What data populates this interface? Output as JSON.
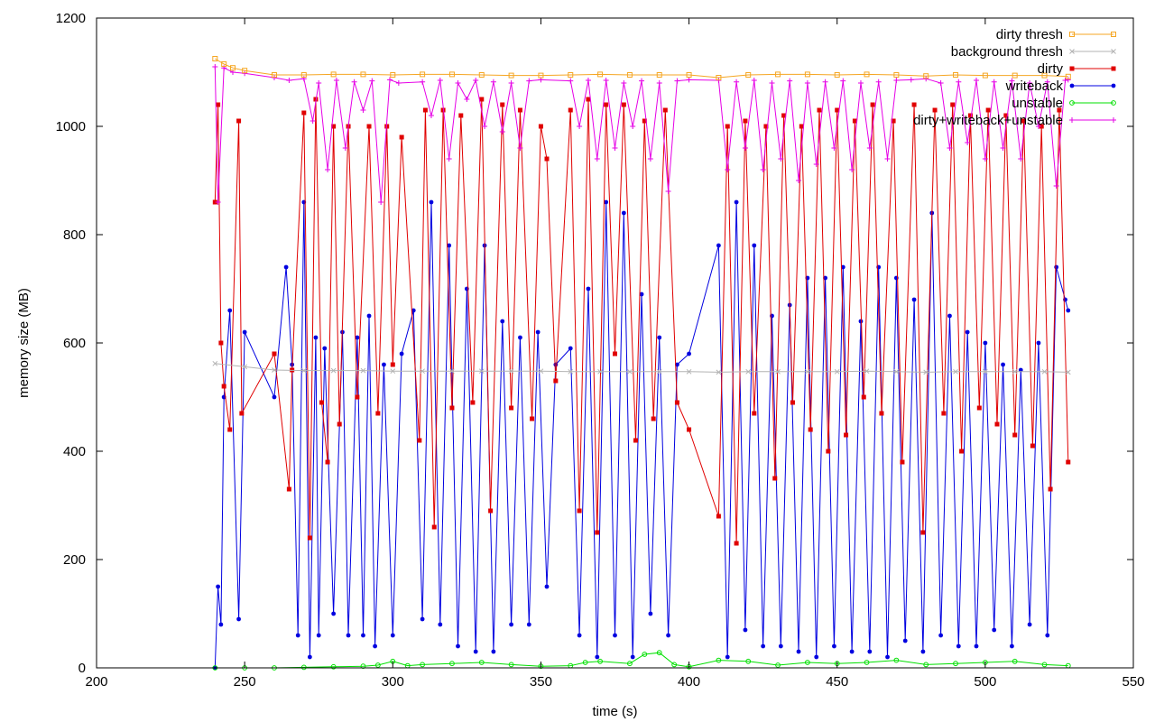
{
  "chart_data": {
    "type": "line",
    "xlabel": "time (s)",
    "ylabel": "memory size (MB)",
    "xlim": [
      200,
      550
    ],
    "ylim": [
      0,
      1200
    ],
    "xticks": [
      "200",
      "250",
      "300",
      "350",
      "400",
      "450",
      "500",
      "550"
    ],
    "yticks": [
      "0",
      "200",
      "400",
      "600",
      "800",
      "1000",
      "1200"
    ],
    "legend_position": "top-right",
    "series": [
      {
        "name": "dirty thresh",
        "color": "#f5a623",
        "marker": "square-open",
        "x": [
          240,
          243,
          246,
          250,
          260,
          270,
          280,
          290,
          300,
          310,
          320,
          330,
          340,
          350,
          360,
          370,
          380,
          390,
          400,
          410,
          420,
          430,
          440,
          450,
          460,
          470,
          480,
          490,
          500,
          510,
          520,
          528
        ],
        "y": [
          1125,
          1115,
          1108,
          1103,
          1095,
          1095,
          1096,
          1096,
          1095,
          1096,
          1096,
          1095,
          1094,
          1094,
          1095,
          1096,
          1095,
          1095,
          1095,
          1090,
          1095,
          1096,
          1096,
          1095,
          1096,
          1095,
          1093,
          1095,
          1094,
          1094,
          1094,
          1092
        ]
      },
      {
        "name": "background thresh",
        "color": "#b3b3b3",
        "marker": "cross",
        "x": [
          240,
          250,
          260,
          270,
          280,
          290,
          300,
          310,
          320,
          330,
          340,
          350,
          360,
          370,
          380,
          390,
          400,
          410,
          420,
          430,
          440,
          450,
          460,
          470,
          480,
          490,
          500,
          510,
          520,
          528
        ],
        "y": [
          562,
          556,
          550,
          549,
          549,
          549,
          548,
          548,
          548,
          548,
          548,
          548,
          547,
          547,
          547,
          547,
          547,
          546,
          547,
          547,
          547,
          547,
          548,
          547,
          546,
          547,
          547,
          547,
          547,
          546
        ]
      },
      {
        "name": "dirty",
        "color": "#e00000",
        "marker": "square",
        "x": [
          240,
          241,
          242,
          243,
          245,
          248,
          249,
          260,
          265,
          266,
          270,
          272,
          274,
          276,
          278,
          280,
          282,
          285,
          288,
          292,
          295,
          298,
          300,
          303,
          309,
          311,
          314,
          317,
          320,
          323,
          327,
          330,
          333,
          337,
          340,
          343,
          347,
          350,
          352,
          355,
          360,
          363,
          366,
          369,
          372,
          375,
          378,
          382,
          385,
          388,
          392,
          396,
          400,
          410,
          413,
          416,
          419,
          422,
          426,
          429,
          432,
          435,
          438,
          441,
          444,
          447,
          450,
          453,
          456,
          459,
          462,
          465,
          469,
          472,
          476,
          479,
          483,
          486,
          489,
          492,
          495,
          498,
          501,
          504,
          507,
          510,
          513,
          516,
          519,
          522,
          525,
          528
        ],
        "y": [
          860,
          1040,
          600,
          520,
          440,
          1010,
          470,
          580,
          330,
          550,
          1025,
          240,
          1050,
          490,
          380,
          1000,
          450,
          1000,
          500,
          1000,
          470,
          1000,
          560,
          980,
          420,
          1030,
          260,
          1030,
          480,
          1020,
          490,
          1050,
          290,
          1040,
          480,
          1030,
          460,
          1000,
          940,
          530,
          1030,
          290,
          1050,
          250,
          1040,
          580,
          1040,
          420,
          1010,
          460,
          1030,
          490,
          440,
          280,
          1000,
          230,
          1010,
          470,
          1000,
          350,
          1020,
          490,
          1000,
          440,
          1030,
          400,
          1030,
          430,
          1010,
          500,
          1040,
          470,
          1010,
          380,
          1040,
          250,
          1030,
          470,
          1040,
          400,
          1020,
          480,
          1030,
          450,
          1020,
          430,
          1010,
          410,
          1000,
          330,
          1030,
          380
        ]
      },
      {
        "name": "writeback",
        "color": "#0000e0",
        "marker": "circle",
        "x": [
          240,
          241,
          242,
          243,
          245,
          248,
          250,
          260,
          264,
          266,
          268,
          270,
          272,
          274,
          275,
          277,
          280,
          283,
          285,
          288,
          290,
          292,
          294,
          297,
          300,
          303,
          307,
          310,
          313,
          316,
          319,
          322,
          325,
          328,
          331,
          334,
          337,
          340,
          343,
          346,
          349,
          352,
          355,
          360,
          363,
          366,
          369,
          372,
          375,
          378,
          381,
          384,
          387,
          390,
          393,
          396,
          400,
          410,
          413,
          416,
          419,
          422,
          425,
          428,
          431,
          434,
          437,
          440,
          443,
          446,
          449,
          452,
          455,
          458,
          461,
          464,
          467,
          470,
          473,
          476,
          479,
          482,
          485,
          488,
          491,
          494,
          497,
          500,
          503,
          506,
          509,
          512,
          515,
          518,
          521,
          524,
          527,
          528
        ],
        "y": [
          0,
          150,
          80,
          500,
          660,
          90,
          620,
          500,
          740,
          560,
          60,
          860,
          20,
          610,
          60,
          590,
          100,
          620,
          60,
          610,
          60,
          650,
          40,
          560,
          60,
          580,
          660,
          90,
          860,
          80,
          780,
          40,
          700,
          30,
          780,
          30,
          640,
          80,
          610,
          80,
          620,
          150,
          560,
          590,
          60,
          700,
          20,
          860,
          60,
          840,
          20,
          690,
          100,
          610,
          60,
          560,
          580,
          780,
          20,
          860,
          70,
          780,
          40,
          650,
          40,
          670,
          30,
          720,
          20,
          720,
          40,
          740,
          30,
          640,
          30,
          740,
          20,
          720,
          50,
          680,
          30,
          840,
          60,
          650,
          40,
          620,
          40,
          600,
          70,
          560,
          40,
          550,
          80,
          600,
          60,
          740,
          680,
          660
        ]
      },
      {
        "name": "unstable",
        "color": "#00e000",
        "marker": "circle-open",
        "x": [
          240,
          250,
          260,
          270,
          280,
          290,
          295,
          300,
          305,
          310,
          320,
          330,
          340,
          350,
          360,
          365,
          370,
          380,
          385,
          390,
          395,
          400,
          410,
          420,
          430,
          440,
          450,
          460,
          470,
          480,
          490,
          500,
          510,
          520,
          528
        ],
        "y": [
          0,
          0,
          0,
          1,
          2,
          3,
          5,
          12,
          4,
          6,
          8,
          10,
          6,
          3,
          4,
          10,
          12,
          8,
          25,
          28,
          6,
          2,
          14,
          12,
          5,
          10,
          8,
          10,
          14,
          6,
          8,
          10,
          12,
          6,
          4
        ]
      },
      {
        "name": "dirty+writeback+unstable",
        "color": "#e600e6",
        "marker": "plus",
        "x": [
          240,
          241,
          243,
          246,
          250,
          260,
          265,
          270,
          273,
          275,
          278,
          281,
          284,
          287,
          290,
          293,
          296,
          299,
          302,
          310,
          313,
          316,
          319,
          322,
          325,
          328,
          331,
          334,
          337,
          340,
          343,
          346,
          350,
          360,
          363,
          366,
          369,
          372,
          375,
          378,
          381,
          384,
          387,
          390,
          393,
          396,
          400,
          410,
          413,
          416,
          419,
          422,
          425,
          428,
          431,
          434,
          437,
          440,
          443,
          446,
          449,
          452,
          455,
          458,
          461,
          464,
          467,
          470,
          475,
          480,
          485,
          488,
          491,
          494,
          497,
          500,
          503,
          506,
          509,
          512,
          515,
          518,
          521,
          524,
          527,
          528
        ],
        "y": [
          1110,
          860,
          1108,
          1100,
          1098,
          1090,
          1085,
          1088,
          1010,
          1080,
          920,
          1085,
          960,
          1082,
          1030,
          1084,
          860,
          1086,
          1080,
          1082,
          1020,
          1085,
          940,
          1080,
          1050,
          1085,
          1000,
          1082,
          990,
          1080,
          960,
          1084,
          1086,
          1084,
          1000,
          1085,
          940,
          1085,
          960,
          1080,
          1000,
          1084,
          940,
          1080,
          880,
          1084,
          1086,
          1085,
          920,
          1082,
          960,
          1085,
          920,
          1080,
          940,
          1084,
          900,
          1080,
          930,
          1082,
          960,
          1084,
          920,
          1080,
          960,
          1082,
          940,
          1085,
          1086,
          1088,
          1080,
          960,
          1082,
          970,
          1085,
          940,
          1082,
          960,
          1084,
          940,
          1080,
          1000,
          1082,
          890,
          1085,
          1086
        ]
      }
    ]
  }
}
